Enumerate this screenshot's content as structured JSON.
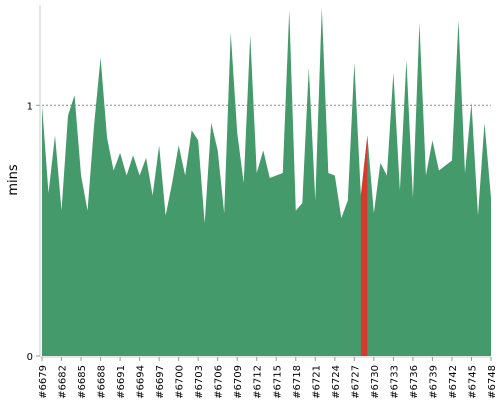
{
  "chart_data": {
    "type": "area",
    "title": "",
    "xlabel": "",
    "ylabel": "mins",
    "ylim": [
      0,
      1.4
    ],
    "yticks": [
      0,
      1
    ],
    "grid": "dashed line at y=1",
    "legend": "none",
    "colors": {
      "normal": "#459a6b",
      "highlight": "#d63a2f",
      "reference": "#888888",
      "axis": "#cccccc"
    },
    "highlight_index": 50,
    "x_ticks": [
      "#6679",
      "#6682",
      "#6685",
      "#6688",
      "#6691",
      "#6694",
      "#6697",
      "#6700",
      "#6703",
      "#6706",
      "#6709",
      "#6712",
      "#6715",
      "#6718",
      "#6721",
      "#6724",
      "#6727",
      "#6730",
      "#6733",
      "#6736",
      "#6739",
      "#6742",
      "#6745",
      "#6748"
    ],
    "x": [
      6679,
      6680,
      6681,
      6682,
      6683,
      6684,
      6685,
      6686,
      6687,
      6688,
      6689,
      6690,
      6691,
      6692,
      6693,
      6694,
      6695,
      6696,
      6697,
      6698,
      6699,
      6700,
      6701,
      6702,
      6703,
      6704,
      6705,
      6706,
      6707,
      6708,
      6709,
      6710,
      6711,
      6712,
      6713,
      6714,
      6715,
      6716,
      6717,
      6718,
      6719,
      6720,
      6721,
      6722,
      6723,
      6724,
      6725,
      6726,
      6727,
      6728,
      6729,
      6730,
      6731,
      6732,
      6733,
      6734,
      6735,
      6736,
      6737,
      6738,
      6739,
      6740,
      6741,
      6742,
      6743,
      6744,
      6745,
      6746,
      6747,
      6748
    ],
    "values": [
      1.0,
      0.65,
      0.88,
      0.58,
      0.96,
      1.04,
      0.72,
      0.58,
      0.92,
      1.19,
      0.87,
      0.74,
      0.81,
      0.72,
      0.8,
      0.72,
      0.79,
      0.64,
      0.84,
      0.56,
      0.69,
      0.84,
      0.72,
      0.9,
      0.86,
      0.53,
      0.93,
      0.82,
      0.57,
      1.29,
      0.89,
      0.69,
      1.28,
      0.73,
      0.82,
      0.71,
      0.72,
      0.73,
      1.38,
      0.58,
      0.61,
      1.15,
      0.62,
      1.39,
      0.73,
      0.72,
      0.55,
      0.62,
      1.17,
      0.64,
      0.88,
      0.57,
      0.77,
      0.72,
      1.13,
      0.66,
      1.18,
      0.63,
      1.33,
      0.72,
      0.86,
      0.74,
      0.76,
      0.78,
      1.34,
      0.73,
      1.01,
      0.56,
      0.93,
      0.63
    ]
  }
}
